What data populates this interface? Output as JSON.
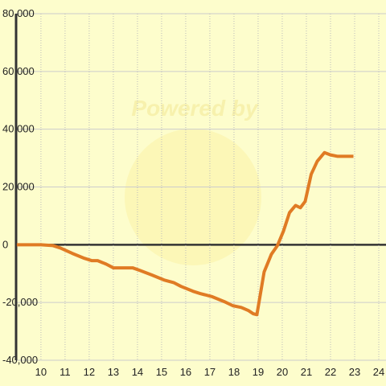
{
  "chart_data": {
    "type": "line",
    "watermark": "Powered by",
    "x": [
      9,
      10,
      10.5,
      10.8,
      11.3,
      11.8,
      12.1,
      12.35,
      12.7,
      13.0,
      13.3,
      13.8,
      14.1,
      14.6,
      15.1,
      15.5,
      15.8,
      16.3,
      16.6,
      17.1,
      17.6,
      17.95,
      18.3,
      18.6,
      18.8,
      18.95,
      19.25,
      19.55,
      19.8,
      20.05,
      20.3,
      20.55,
      20.75,
      20.95,
      21.2,
      21.45,
      21.75,
      22.0,
      22.3,
      22.95
    ],
    "series": [
      {
        "color": "#e07b24",
        "values": [
          0,
          0,
          -300,
          -1100,
          -3000,
          -4700,
          -5500,
          -5500,
          -6700,
          -8000,
          -8000,
          -8000,
          -8900,
          -10500,
          -12200,
          -13100,
          -14400,
          -16100,
          -16900,
          -18000,
          -19700,
          -21100,
          -21700,
          -22800,
          -23900,
          -24200,
          -9400,
          -3300,
          -300,
          4700,
          11100,
          13600,
          12800,
          15000,
          24400,
          28900,
          31900,
          31100,
          30600,
          30600
        ]
      }
    ],
    "xlim": [
      8.97,
      24.3
    ],
    "xticks": [
      10,
      11,
      12,
      13,
      14,
      15,
      16,
      17,
      18,
      19,
      20,
      21,
      22,
      23,
      24
    ],
    "ylim": [
      -40000,
      80000
    ],
    "yticks": [
      {
        "value": -40000,
        "label": "-40,000"
      },
      {
        "value": -20000,
        "label": "-20,000"
      },
      {
        "value": 0,
        "label": "0"
      },
      {
        "value": 20000,
        "label": "20,000"
      },
      {
        "value": 40000,
        "label": "40,000"
      },
      {
        "value": 60000,
        "label": "60,000"
      },
      {
        "value": 80000,
        "label": "80,000"
      }
    ],
    "grid": true
  }
}
